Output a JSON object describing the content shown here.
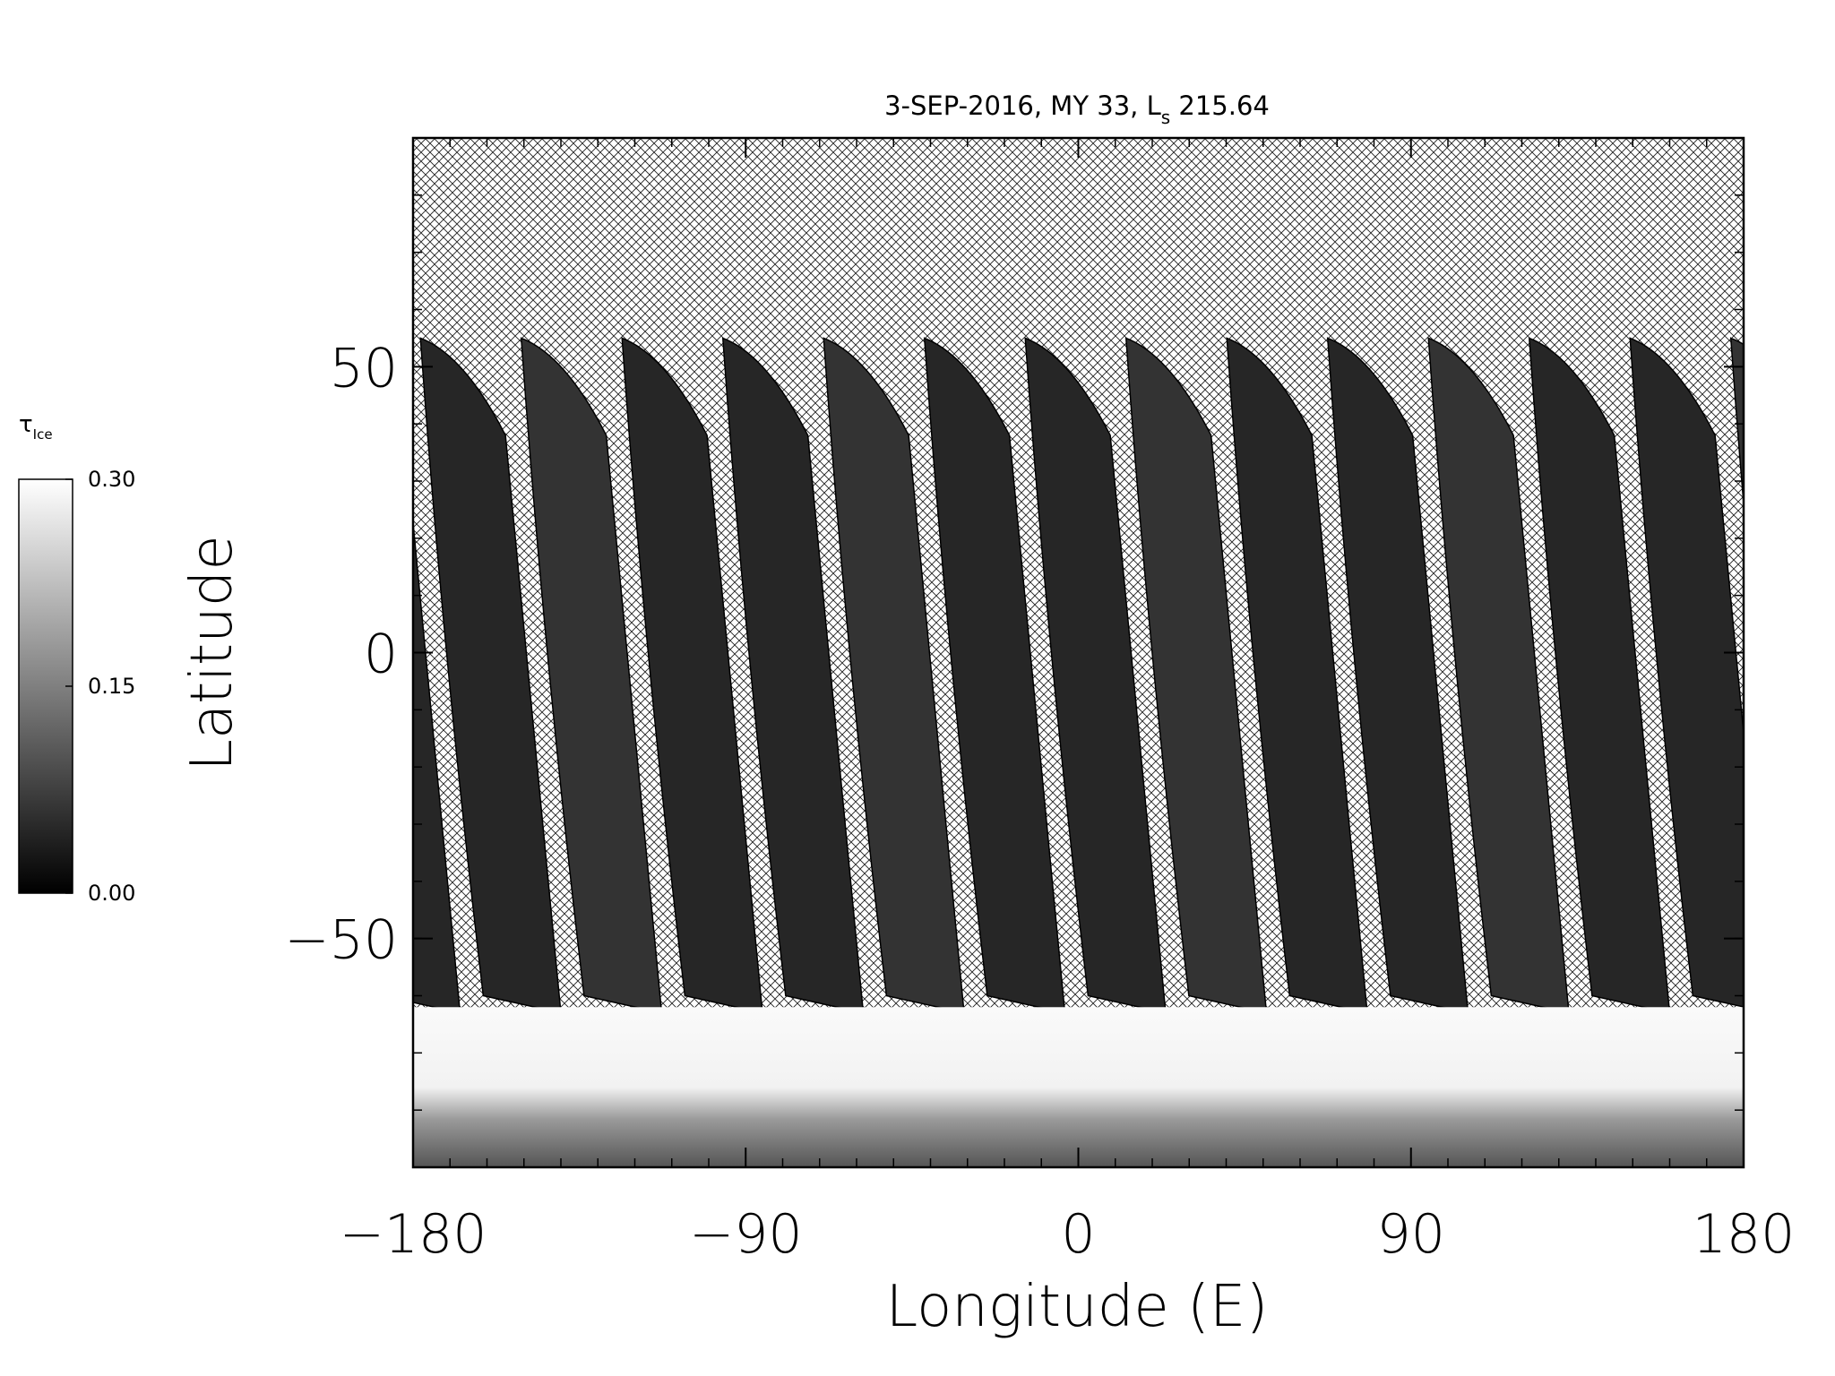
{
  "chart_data": {
    "type": "map",
    "title": [
      "3-SEP-2016, MY 33,  L",
      "s",
      " 215.64"
    ],
    "x_label": "Longitude (E)",
    "y_label": "Latitude",
    "xlim": [
      -180,
      180
    ],
    "ylim": [
      -90,
      90
    ],
    "xticks": [
      {
        "value": -180,
        "label": "−180"
      },
      {
        "value": -90,
        "label": "−90"
      },
      0,
      90,
      180
    ],
    "yticks": [
      {
        "value": -50,
        "label": "−50"
      },
      0,
      50
    ],
    "x_minor_step": 10,
    "y_minor_step": 10,
    "colorbar": {
      "label": [
        "τ",
        "Ice"
      ],
      "lim": [
        0,
        0.3
      ],
      "ticks": [
        {
          "value": 0,
          "label": "0.00"
        },
        {
          "value": 0.15,
          "label": "0.15"
        },
        {
          "value": 0.3,
          "label": "0.30"
        }
      ],
      "colors": [
        "#000000",
        "#ffffff"
      ]
    }
  }
}
